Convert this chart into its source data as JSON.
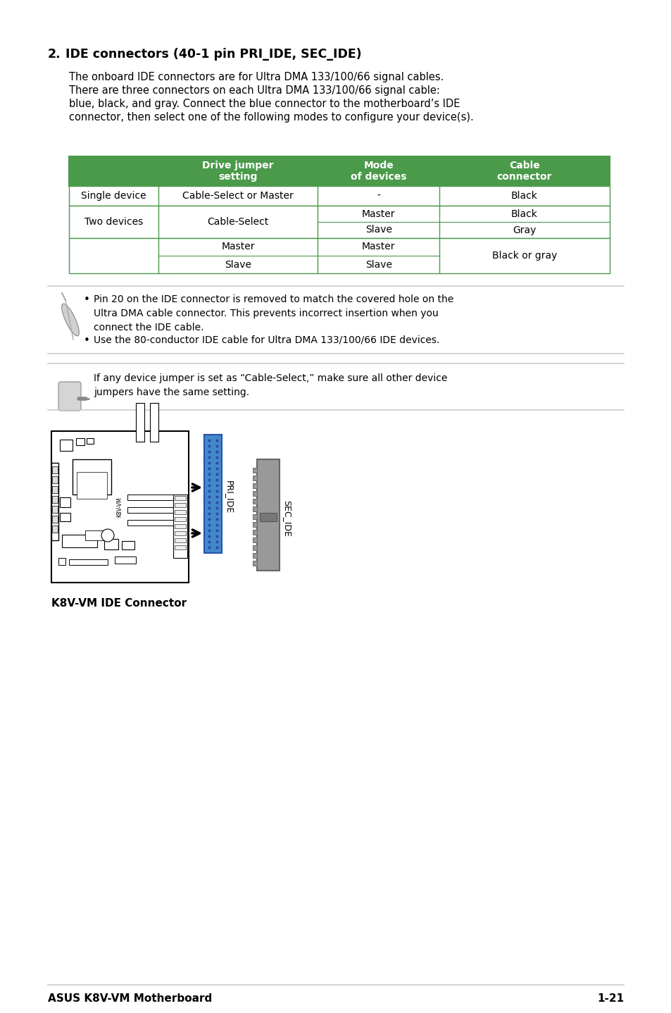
{
  "bg_color": "#ffffff",
  "section_number": "2.",
  "section_title": "IDE connectors (40-1 pin PRI_IDE, SEC_IDE)",
  "body_text_line1": "The onboard IDE connectors are for Ultra DMA 133/100/66 signal cables.",
  "body_text_line2": "There are three connectors on each Ultra DMA 133/100/66 signal cable:",
  "body_text_line3": "blue, black, and gray. Connect the blue connector to the motherboard’s IDE",
  "body_text_line4": "connector, then select one of the following modes to configure your device(s).",
  "table_header_bg": "#4a9a4a",
  "table_header_text_color": "#ffffff",
  "table_border_color": "#4a9a4a",
  "table_col0_header": "",
  "table_col1_header": "Drive jumper\nsetting",
  "table_col2_header": "Mode\nof devices",
  "table_col3_header": "Cable\nconnector",
  "row1_col0": "Single device",
  "row1_col1": "Cable-Select or Master",
  "row1_col2": "-",
  "row1_col3": "Black",
  "row2_col0": "Two devices",
  "row2_col1": "Cable-Select",
  "row2_col2a": "Master",
  "row2_col2b": "Slave",
  "row2_col3a": "Black",
  "row2_col3b": "Gray",
  "row3_col0": "",
  "row3_col1a": "Master",
  "row3_col1b": "Slave",
  "row3_col2a": "Master",
  "row3_col2b": "Slave",
  "row3_col3": "Black or gray",
  "note_text_1": "Pin 20 on the IDE connector is removed to match the covered hole on the\nUltra DMA cable connector. This prevents incorrect insertion when you\nconnect the IDE cable.",
  "note_text_2": "Use the 80-conductor IDE cable for Ultra DMA 133/100/66 IDE devices.",
  "caution_text": "If any device jumper is set as “Cable-Select,” make sure all other device\njumpers have the same setting.",
  "connector_label": "K8V-VM IDE Connector",
  "footer_left": "ASUS K8V-VM Motherboard",
  "footer_right": "1-21",
  "green_color": "#4a9a4a",
  "text_color": "#000000",
  "gray_line_color": "#cccccc",
  "pri_ide_color": "#4488cc",
  "sec_ide_color": "#999999"
}
